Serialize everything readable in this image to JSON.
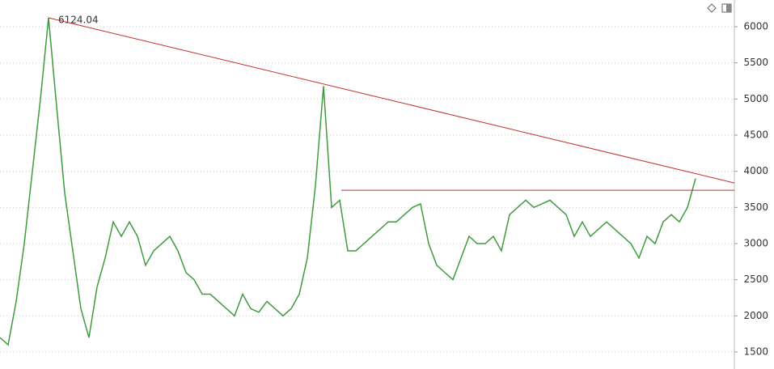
{
  "chart_data": {
    "type": "line",
    "annotation": "6124.04",
    "series": [
      {
        "color": "#3f9b3f",
        "values": [
          1700,
          1600,
          2200,
          3000,
          4000,
          5000,
          6124,
          4900,
          3700,
          2900,
          2100,
          1700,
          2400,
          2800,
          3300,
          3100,
          3300,
          3100,
          2700,
          2900,
          3000,
          3100,
          2900,
          2600,
          2500,
          2300,
          2300,
          2200,
          2100,
          2000,
          2300,
          2100,
          2050,
          2200,
          2100,
          2000,
          2100,
          2300,
          2800,
          3800,
          5178,
          3500,
          3600,
          2900,
          2900,
          3000,
          3100,
          3200,
          3300,
          3300,
          3400,
          3500,
          3550,
          3000,
          2700,
          2600,
          2500,
          2800,
          3100,
          3000,
          3000,
          3100,
          2900,
          3400,
          3500,
          3600,
          3500,
          3550,
          3600,
          3500,
          3400,
          3100,
          3300,
          3100,
          3200,
          3300,
          3200,
          3100,
          3000,
          2800,
          3100,
          3000,
          3300,
          3400,
          3300,
          3500,
          3900
        ]
      }
    ],
    "trend_lines": [
      {
        "color": "#c0302b",
        "start": 6124,
        "end": 3839
      },
      {
        "color": "#c0302b",
        "start": 3738,
        "end": 3738
      }
    ],
    "ylim": [
      1265,
      6370
    ],
    "yticks": [
      1500,
      2000,
      2500,
      3000,
      3500,
      4000,
      4500,
      5000,
      5500,
      6000
    ],
    "grid": true
  }
}
